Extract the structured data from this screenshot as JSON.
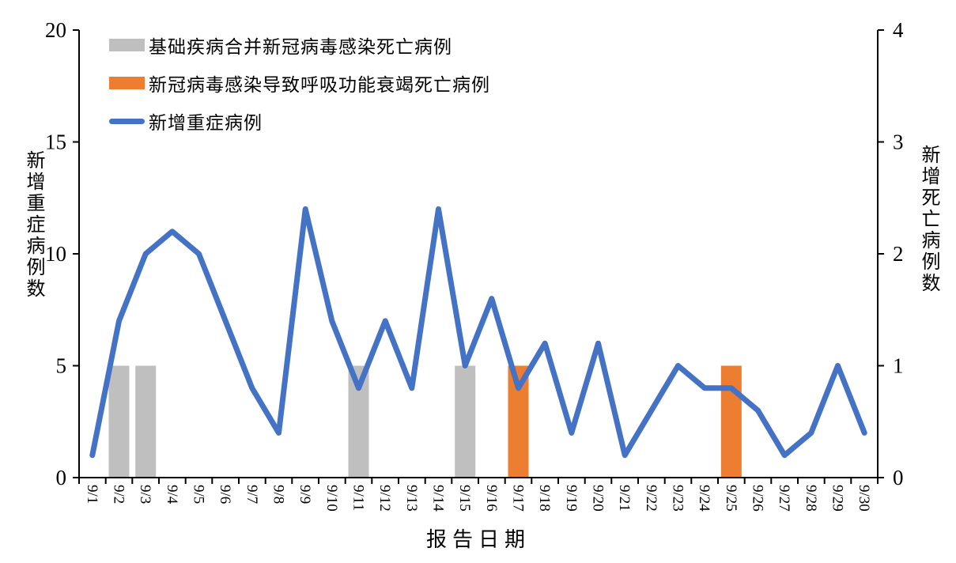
{
  "chart": {
    "legend": [
      {
        "label": "基础疾病合并新冠病毒感染死亡病例",
        "swatch": "bar",
        "color": "#BFBFBF"
      },
      {
        "label": "新冠病毒感染导致呼吸功能衰竭死亡病例",
        "swatch": "bar",
        "color": "#ED7D31"
      },
      {
        "label": "新增重症病例",
        "swatch": "line",
        "color": "#4472C4"
      }
    ],
    "axes": {
      "left_title": "新增重症病例数",
      "right_title": "新增死亡病例数",
      "x_title": "报告日期"
    }
  },
  "chart_data": {
    "type": "combo-bar-line",
    "title": "",
    "xlabel": "报告日期",
    "ylabel_left": "新增重症病例数",
    "ylabel_right": "新增死亡病例数",
    "ylim_left": [
      0,
      20
    ],
    "ylim_right": [
      0,
      4
    ],
    "yticks_left": [
      0,
      5,
      10,
      15,
      20
    ],
    "yticks_right": [
      0,
      1,
      2,
      3,
      4
    ],
    "grid": false,
    "legend_position": "top-left-inside",
    "categories": [
      "9/1",
      "9/2",
      "9/3",
      "9/4",
      "9/5",
      "9/6",
      "9/7",
      "9/8",
      "9/9",
      "9/10",
      "9/11",
      "9/12",
      "9/13",
      "9/14",
      "9/15",
      "9/16",
      "9/17",
      "9/18",
      "9/19",
      "9/20",
      "9/21",
      "9/22",
      "9/23",
      "9/24",
      "9/25",
      "9/26",
      "9/27",
      "9/28",
      "9/29",
      "9/30"
    ],
    "series": [
      {
        "name": "基础疾病合并新冠病毒感染死亡病例",
        "type": "bar",
        "axis": "right",
        "color": "#BFBFBF",
        "values": [
          0,
          1,
          1,
          0,
          0,
          0,
          0,
          0,
          0,
          0,
          1,
          0,
          0,
          0,
          1,
          0,
          0,
          0,
          0,
          0,
          0,
          0,
          0,
          0,
          0,
          0,
          0,
          0,
          0,
          0
        ]
      },
      {
        "name": "新冠病毒感染导致呼吸功能衰竭死亡病例",
        "type": "bar",
        "axis": "right",
        "color": "#ED7D31",
        "values": [
          0,
          0,
          0,
          0,
          0,
          0,
          0,
          0,
          0,
          0,
          0,
          0,
          0,
          0,
          0,
          0,
          1,
          0,
          0,
          0,
          0,
          0,
          0,
          0,
          1,
          0,
          0,
          0,
          0,
          0
        ]
      },
      {
        "name": "新增重症病例",
        "type": "line",
        "axis": "left",
        "color": "#4472C4",
        "values": [
          1,
          7,
          10,
          11,
          10,
          7,
          4,
          2,
          12,
          7,
          4,
          7,
          4,
          12,
          5,
          8,
          4,
          6,
          2,
          6,
          1,
          3,
          5,
          4,
          4,
          3,
          1,
          2,
          5,
          2
        ]
      }
    ]
  }
}
